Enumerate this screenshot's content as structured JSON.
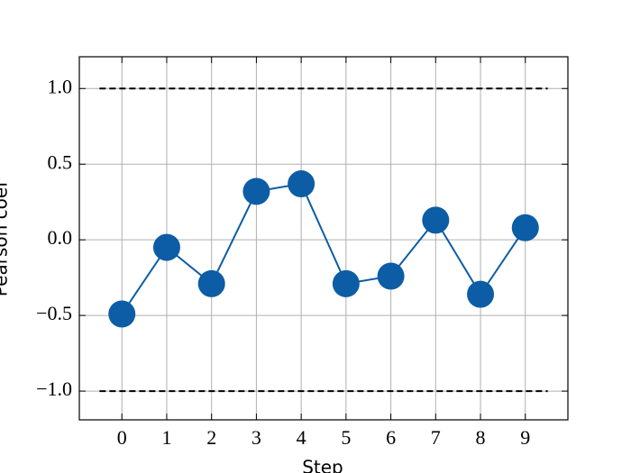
{
  "chart_data": {
    "type": "line",
    "xlabel": "Step",
    "ylabel": "Pearson coef",
    "x": [
      0,
      1,
      2,
      3,
      4,
      5,
      6,
      7,
      8,
      9
    ],
    "series": [
      {
        "color": "#0C5DA5",
        "values": [
          -0.49,
          -0.05,
          -0.29,
          0.32,
          0.37,
          -0.29,
          -0.24,
          0.13,
          -0.36,
          0.08
        ]
      }
    ],
    "reference_lines": [
      {
        "y": 1,
        "x": [
          -0.5,
          9.5
        ],
        "color": "#000000",
        "style": "dashed"
      },
      {
        "y": -1,
        "x": [
          -0.5,
          9.5
        ],
        "color": "#000000",
        "style": "dashed"
      }
    ],
    "xlim": [
      -0.95,
      9.95
    ],
    "ylim": [
      -1.19,
      1.21
    ],
    "xticks": [
      0,
      1,
      2,
      3,
      4,
      5,
      6,
      7,
      8,
      9
    ],
    "yticks": [
      {
        "value": -1,
        "label": "−1.0"
      },
      {
        "value": -0.5,
        "label": "−0.5"
      },
      {
        "value": 0,
        "label": "0.0"
      },
      0.5,
      {
        "value": 1,
        "label": "1.0"
      }
    ],
    "grid": true
  }
}
